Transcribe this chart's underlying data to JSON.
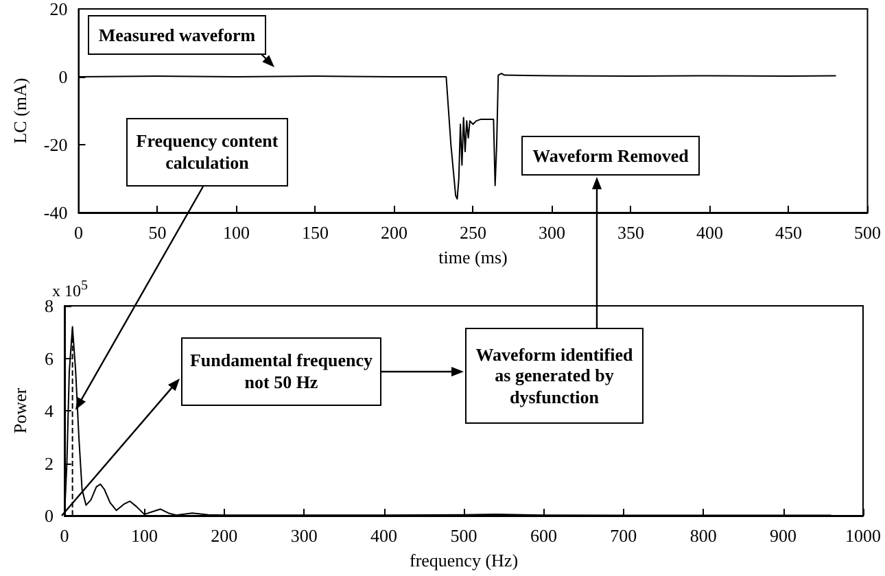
{
  "chart_data": [
    {
      "type": "line",
      "xlabel": "time (ms)",
      "ylabel": "LC (mA)",
      "xlim": [
        0,
        500
      ],
      "xticks": [
        0,
        50,
        100,
        150,
        200,
        250,
        300,
        350,
        400,
        450,
        500
      ],
      "ylim": [
        -40,
        20
      ],
      "yticks": [
        -40,
        -20,
        0,
        20
      ],
      "grid": false,
      "marker": "none",
      "line_style": "solid",
      "annotations": [
        "Measured waveform",
        "Frequency content calculation",
        "Waveform Removed"
      ],
      "series": [
        {
          "color": "#000000",
          "x": [
            0,
            50,
            100,
            150,
            200,
            230,
            233,
            236,
            239,
            240,
            241,
            242,
            243,
            244,
            245,
            246,
            247,
            248,
            250,
            252,
            255,
            258,
            262,
            263,
            264,
            265,
            266,
            268,
            270,
            300,
            350,
            400,
            450,
            480
          ],
          "values": [
            0,
            0.2,
            0,
            0.2,
            0,
            0,
            0,
            -20,
            -35,
            -36,
            -30,
            -14,
            -26,
            -12,
            -22,
            -13,
            -18,
            -13,
            -14,
            -13,
            -12.5,
            -12.5,
            -12.5,
            -12.5,
            -32,
            -20,
            0.5,
            1,
            0.5,
            0.3,
            0.2,
            0.3,
            0.2,
            0.3
          ]
        }
      ]
    },
    {
      "type": "line",
      "xlabel": "frequency (Hz)",
      "ylabel": "Power",
      "xlim": [
        0,
        1000
      ],
      "xticks": [
        0,
        100,
        200,
        300,
        400,
        500,
        600,
        700,
        800,
        900,
        1000
      ],
      "ylim": [
        0,
        8
      ],
      "yticks": [
        0,
        2,
        4,
        6,
        8
      ],
      "grid": false,
      "marker": "none",
      "line_style": "solid",
      "annotations": [
        "x 10$^{5}$",
        "Fundamental frequency not 50 Hz",
        "Waveform identified as generated by dysfunction"
      ],
      "series": [
        {
          "color": "#000000",
          "x": [
            0,
            3,
            6,
            10,
            14,
            18,
            22,
            27,
            33,
            40,
            45,
            50,
            57,
            65,
            75,
            82,
            90,
            100,
            110,
            120,
            130,
            140,
            160,
            180,
            200,
            300,
            400,
            500,
            540,
            600,
            700,
            800,
            960
          ],
          "values": [
            0,
            2,
            5.5,
            7.2,
            5.5,
            3,
            1,
            0.4,
            0.6,
            1.1,
            1.2,
            1,
            0.5,
            0.2,
            0.45,
            0.55,
            0.35,
            0.05,
            0.15,
            0.25,
            0.1,
            0.02,
            0.1,
            0.03,
            0.02,
            0.02,
            0.02,
            0.03,
            0.05,
            0.02,
            0.01,
            0.01,
            0.01
          ]
        },
        {
          "color": "#000000",
          "line_style": "dashed",
          "x": [
            10,
            10
          ],
          "values": [
            0,
            7.2
          ]
        }
      ]
    }
  ]
}
